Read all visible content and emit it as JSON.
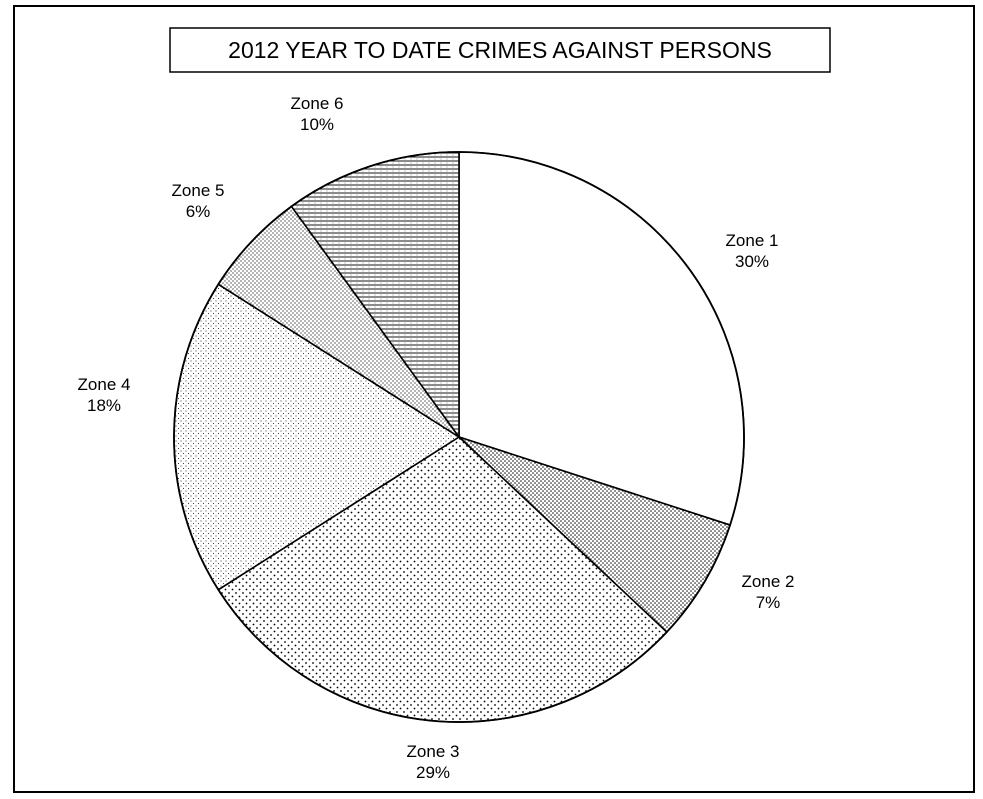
{
  "chart_data": {
    "type": "pie",
    "title": "2012 YEAR TO DATE CRIMES AGAINST PERSONS",
    "slices": [
      {
        "label": "Zone 1",
        "value": 30,
        "value_label": "30%",
        "pattern": "white"
      },
      {
        "label": "Zone 2",
        "value": 7,
        "value_label": "7%",
        "pattern": "dense-dots"
      },
      {
        "label": "Zone 3",
        "value": 29,
        "value_label": "29%",
        "pattern": "sparse-dots"
      },
      {
        "label": "Zone 4",
        "value": 18,
        "value_label": "18%",
        "pattern": "fine-dots"
      },
      {
        "label": "Zone 5",
        "value": 6,
        "value_label": "6%",
        "pattern": "medium-dots"
      },
      {
        "label": "Zone 6",
        "value": 10,
        "value_label": "10%",
        "pattern": "horizontal-lines"
      }
    ],
    "start_angle": "12 o'clock",
    "direction": "clockwise",
    "colors": {
      "line": "#000000",
      "background": "#ffffff"
    }
  }
}
